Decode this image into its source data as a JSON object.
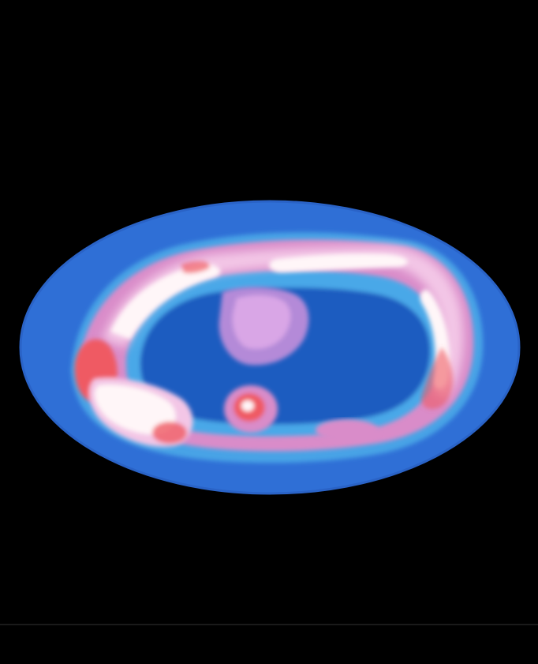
{
  "image": {
    "kind": "false-color transverse scintigraphic scan",
    "colors": {
      "background": "#000000",
      "body": "#2f6fd6",
      "body_edge": "#2a63c7",
      "inner_cavity": "#1f5bc0",
      "halo": "#4aa8e8",
      "mid_pink": "#d98cc9",
      "light_pink": "#f3c6e6",
      "hot_red": "#ef5a63",
      "hot_white": "#fff6f8",
      "violet": "#b48ad8"
    }
  }
}
